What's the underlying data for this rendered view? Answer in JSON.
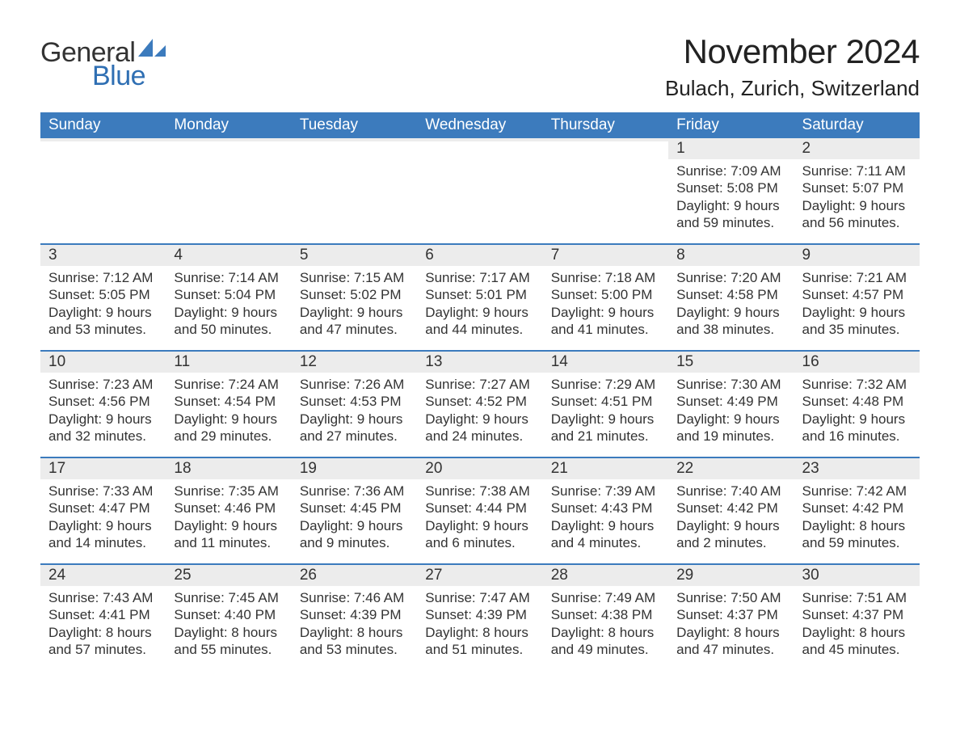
{
  "brand": {
    "line1": "General",
    "line2": "Blue",
    "icon_color": "#3c7bbd",
    "text_color_dark": "#333333",
    "text_color_blue": "#2f6fb3"
  },
  "title": "November 2024",
  "location": "Bulach, Zurich, Switzerland",
  "colors": {
    "header_bg": "#3c7bbd",
    "header_text": "#ffffff",
    "week_divider": "#3c7bbd",
    "daynum_bg": "#ececec",
    "body_text": "#333333",
    "page_bg": "#ffffff"
  },
  "fonts": {
    "title_size_pt": 32,
    "location_size_pt": 20,
    "dow_size_pt": 14,
    "daynum_size_pt": 14,
    "body_size_pt": 13
  },
  "days_of_week": [
    "Sunday",
    "Monday",
    "Tuesday",
    "Wednesday",
    "Thursday",
    "Friday",
    "Saturday"
  ],
  "weeks": [
    [
      {
        "empty": true
      },
      {
        "empty": true
      },
      {
        "empty": true
      },
      {
        "empty": true
      },
      {
        "empty": true
      },
      {
        "n": "1",
        "sunrise": "Sunrise: 7:09 AM",
        "sunset": "Sunset: 5:08 PM",
        "day1": "Daylight: 9 hours",
        "day2": "and 59 minutes."
      },
      {
        "n": "2",
        "sunrise": "Sunrise: 7:11 AM",
        "sunset": "Sunset: 5:07 PM",
        "day1": "Daylight: 9 hours",
        "day2": "and 56 minutes."
      }
    ],
    [
      {
        "n": "3",
        "sunrise": "Sunrise: 7:12 AM",
        "sunset": "Sunset: 5:05 PM",
        "day1": "Daylight: 9 hours",
        "day2": "and 53 minutes."
      },
      {
        "n": "4",
        "sunrise": "Sunrise: 7:14 AM",
        "sunset": "Sunset: 5:04 PM",
        "day1": "Daylight: 9 hours",
        "day2": "and 50 minutes."
      },
      {
        "n": "5",
        "sunrise": "Sunrise: 7:15 AM",
        "sunset": "Sunset: 5:02 PM",
        "day1": "Daylight: 9 hours",
        "day2": "and 47 minutes."
      },
      {
        "n": "6",
        "sunrise": "Sunrise: 7:17 AM",
        "sunset": "Sunset: 5:01 PM",
        "day1": "Daylight: 9 hours",
        "day2": "and 44 minutes."
      },
      {
        "n": "7",
        "sunrise": "Sunrise: 7:18 AM",
        "sunset": "Sunset: 5:00 PM",
        "day1": "Daylight: 9 hours",
        "day2": "and 41 minutes."
      },
      {
        "n": "8",
        "sunrise": "Sunrise: 7:20 AM",
        "sunset": "Sunset: 4:58 PM",
        "day1": "Daylight: 9 hours",
        "day2": "and 38 minutes."
      },
      {
        "n": "9",
        "sunrise": "Sunrise: 7:21 AM",
        "sunset": "Sunset: 4:57 PM",
        "day1": "Daylight: 9 hours",
        "day2": "and 35 minutes."
      }
    ],
    [
      {
        "n": "10",
        "sunrise": "Sunrise: 7:23 AM",
        "sunset": "Sunset: 4:56 PM",
        "day1": "Daylight: 9 hours",
        "day2": "and 32 minutes."
      },
      {
        "n": "11",
        "sunrise": "Sunrise: 7:24 AM",
        "sunset": "Sunset: 4:54 PM",
        "day1": "Daylight: 9 hours",
        "day2": "and 29 minutes."
      },
      {
        "n": "12",
        "sunrise": "Sunrise: 7:26 AM",
        "sunset": "Sunset: 4:53 PM",
        "day1": "Daylight: 9 hours",
        "day2": "and 27 minutes."
      },
      {
        "n": "13",
        "sunrise": "Sunrise: 7:27 AM",
        "sunset": "Sunset: 4:52 PM",
        "day1": "Daylight: 9 hours",
        "day2": "and 24 minutes."
      },
      {
        "n": "14",
        "sunrise": "Sunrise: 7:29 AM",
        "sunset": "Sunset: 4:51 PM",
        "day1": "Daylight: 9 hours",
        "day2": "and 21 minutes."
      },
      {
        "n": "15",
        "sunrise": "Sunrise: 7:30 AM",
        "sunset": "Sunset: 4:49 PM",
        "day1": "Daylight: 9 hours",
        "day2": "and 19 minutes."
      },
      {
        "n": "16",
        "sunrise": "Sunrise: 7:32 AM",
        "sunset": "Sunset: 4:48 PM",
        "day1": "Daylight: 9 hours",
        "day2": "and 16 minutes."
      }
    ],
    [
      {
        "n": "17",
        "sunrise": "Sunrise: 7:33 AM",
        "sunset": "Sunset: 4:47 PM",
        "day1": "Daylight: 9 hours",
        "day2": "and 14 minutes."
      },
      {
        "n": "18",
        "sunrise": "Sunrise: 7:35 AM",
        "sunset": "Sunset: 4:46 PM",
        "day1": "Daylight: 9 hours",
        "day2": "and 11 minutes."
      },
      {
        "n": "19",
        "sunrise": "Sunrise: 7:36 AM",
        "sunset": "Sunset: 4:45 PM",
        "day1": "Daylight: 9 hours",
        "day2": "and 9 minutes."
      },
      {
        "n": "20",
        "sunrise": "Sunrise: 7:38 AM",
        "sunset": "Sunset: 4:44 PM",
        "day1": "Daylight: 9 hours",
        "day2": "and 6 minutes."
      },
      {
        "n": "21",
        "sunrise": "Sunrise: 7:39 AM",
        "sunset": "Sunset: 4:43 PM",
        "day1": "Daylight: 9 hours",
        "day2": "and 4 minutes."
      },
      {
        "n": "22",
        "sunrise": "Sunrise: 7:40 AM",
        "sunset": "Sunset: 4:42 PM",
        "day1": "Daylight: 9 hours",
        "day2": "and 2 minutes."
      },
      {
        "n": "23",
        "sunrise": "Sunrise: 7:42 AM",
        "sunset": "Sunset: 4:42 PM",
        "day1": "Daylight: 8 hours",
        "day2": "and 59 minutes."
      }
    ],
    [
      {
        "n": "24",
        "sunrise": "Sunrise: 7:43 AM",
        "sunset": "Sunset: 4:41 PM",
        "day1": "Daylight: 8 hours",
        "day2": "and 57 minutes."
      },
      {
        "n": "25",
        "sunrise": "Sunrise: 7:45 AM",
        "sunset": "Sunset: 4:40 PM",
        "day1": "Daylight: 8 hours",
        "day2": "and 55 minutes."
      },
      {
        "n": "26",
        "sunrise": "Sunrise: 7:46 AM",
        "sunset": "Sunset: 4:39 PM",
        "day1": "Daylight: 8 hours",
        "day2": "and 53 minutes."
      },
      {
        "n": "27",
        "sunrise": "Sunrise: 7:47 AM",
        "sunset": "Sunset: 4:39 PM",
        "day1": "Daylight: 8 hours",
        "day2": "and 51 minutes."
      },
      {
        "n": "28",
        "sunrise": "Sunrise: 7:49 AM",
        "sunset": "Sunset: 4:38 PM",
        "day1": "Daylight: 8 hours",
        "day2": "and 49 minutes."
      },
      {
        "n": "29",
        "sunrise": "Sunrise: 7:50 AM",
        "sunset": "Sunset: 4:37 PM",
        "day1": "Daylight: 8 hours",
        "day2": "and 47 minutes."
      },
      {
        "n": "30",
        "sunrise": "Sunrise: 7:51 AM",
        "sunset": "Sunset: 4:37 PM",
        "day1": "Daylight: 8 hours",
        "day2": "and 45 minutes."
      }
    ]
  ]
}
